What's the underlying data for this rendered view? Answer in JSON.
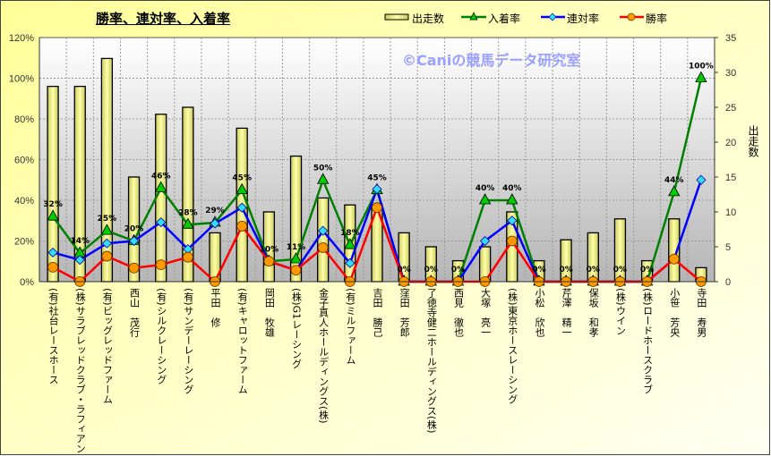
{
  "chart_data": {
    "type": "bar+line",
    "title": "勝率、連対率、入着率",
    "watermark": "©Caniの競馬データ研究室",
    "categories": [
      "(有)社台レースホース",
      "(株)サラブレッドクラブ・ラフィアン",
      "(有)ビッグレッドファーム",
      "西山　茂行",
      "(有)シルクレーシング",
      "(有)サンデーレーシング",
      "平田　修",
      "(有)キャロットファーム",
      "岡田　牧雄",
      "(株)G1レーシング",
      "金子真人ホールディングス(株)",
      "(有)ミルファーム",
      "吉田　勝己",
      "窪田　芳郎",
      "了徳寺健二ホールディングス(株)",
      "西見　徹也",
      "大塚　亮一",
      "(株)東京ホースレーシング",
      "小松　欣也",
      "芹澤　精一",
      "保坂　和孝",
      "(株)ウイン",
      "(株)ロードホースクラブ",
      "小笹　芳央",
      "寺田　寿男"
    ],
    "series": [
      {
        "name": "出走数",
        "type": "bar",
        "axis": "right",
        "values": [
          28,
          28,
          32,
          15,
          24,
          25,
          7,
          22,
          10,
          18,
          12,
          11,
          11,
          7,
          5,
          3,
          5,
          10,
          3,
          6,
          7,
          9,
          3,
          9,
          2
        ]
      },
      {
        "name": "入着率",
        "type": "line",
        "axis": "left",
        "color": "#008000",
        "marker": "triangle",
        "values": [
          32,
          14,
          25,
          20,
          46,
          28,
          29,
          45,
          10,
          11,
          50,
          18,
          45,
          0,
          0,
          0,
          40,
          40,
          0,
          0,
          0,
          0,
          0,
          44,
          100
        ]
      },
      {
        "name": "連対率",
        "type": "line",
        "axis": "left",
        "color": "#0000ff",
        "marker": "diamond",
        "values": [
          14.3,
          10.7,
          18.8,
          20,
          29.2,
          16,
          28.6,
          36.4,
          10,
          5.6,
          25,
          9.1,
          45.5,
          0,
          0,
          0,
          20,
          30,
          0,
          0,
          0,
          0,
          0,
          11.1,
          50
        ]
      },
      {
        "name": "勝率",
        "type": "line",
        "axis": "left",
        "color": "#ff0000",
        "marker": "circle",
        "values": [
          7.1,
          0,
          12.5,
          6.7,
          8.3,
          12,
          0,
          27.3,
          10,
          5.6,
          16.7,
          0,
          36.4,
          0,
          0,
          0,
          0,
          20,
          0,
          0,
          0,
          0,
          0,
          11.1,
          0
        ]
      }
    ],
    "data_labels": [
      "32%",
      "14%",
      "25%",
      "20%",
      "46%",
      "28%",
      "29%",
      "45%",
      "10%",
      "11%",
      "50%",
      "18%",
      "45%",
      "0%",
      "0%",
      "0%",
      "40%",
      "40%",
      "0%",
      "0%",
      "0%",
      "0%",
      "0%",
      "44%",
      "100%"
    ],
    "y_left": {
      "ticks": [
        "0%",
        "20%",
        "40%",
        "60%",
        "80%",
        "100%",
        "120%"
      ],
      "range": [
        0,
        120
      ]
    },
    "y_right": {
      "label": "出走数",
      "ticks": [
        "0",
        "5",
        "10",
        "15",
        "20",
        "25",
        "30",
        "35"
      ],
      "range": [
        0,
        35
      ]
    },
    "legend": {
      "placement": "top-right",
      "items": [
        "出走数",
        "入着率",
        "連対率",
        "勝率"
      ]
    },
    "grid": true
  }
}
